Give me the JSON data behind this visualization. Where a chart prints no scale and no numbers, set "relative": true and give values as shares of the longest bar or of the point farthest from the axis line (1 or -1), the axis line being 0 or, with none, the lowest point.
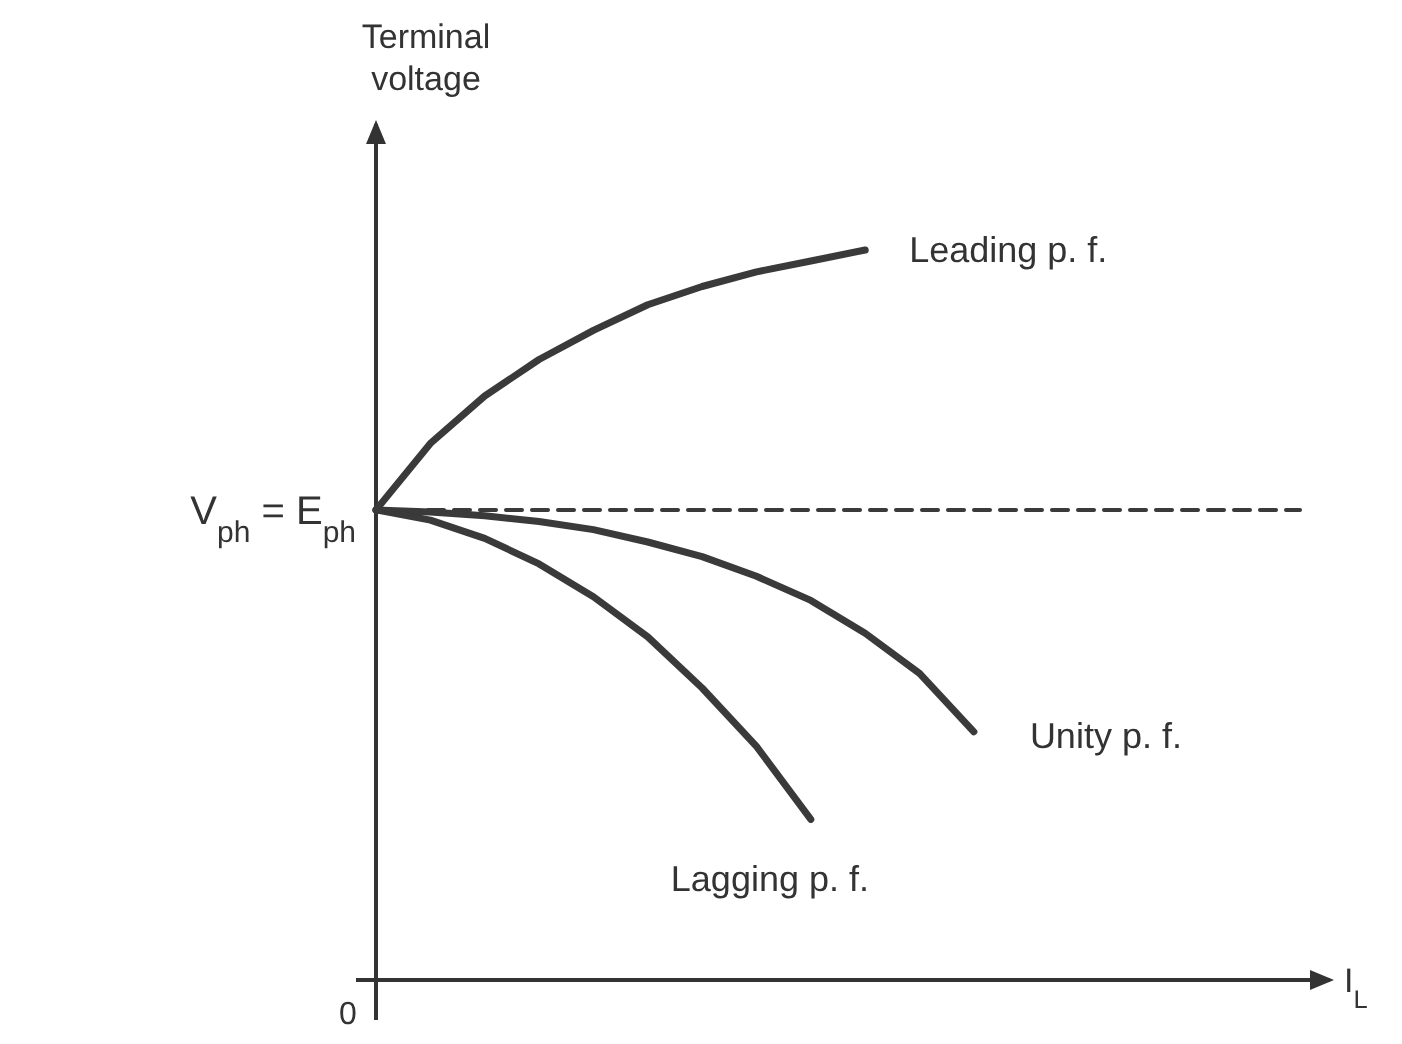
{
  "chart_data": {
    "type": "line",
    "relative": true,
    "ylabel": "Terminal voltage",
    "xlabel": "I$_{L}$",
    "legend": false,
    "marker": "none",
    "line_style": "solid",
    "grid": false,
    "categories": [
      null,
      null,
      null,
      null,
      null,
      null,
      null,
      null,
      null,
      null,
      null,
      null,
      null,
      null,
      null,
      null,
      null,
      null
    ],
    "annotations": [
      "V$_{ph}$ = E$_{ph}$",
      "0"
    ],
    "series": [
      {
        "name": "Leading p. f.",
        "color": "#3a3a3a",
        "values": [
          0.644,
          0.735,
          0.8,
          0.85,
          0.89,
          0.925,
          0.95,
          0.97,
          0.985,
          1,
          null,
          null,
          null,
          null,
          null,
          null,
          null,
          null
        ]
      },
      {
        "name": "Unity p. f.",
        "color": "#3a3a3a",
        "values": [
          0.644,
          0.641,
          0.636,
          0.628,
          0.617,
          0.6,
          0.58,
          0.553,
          0.52,
          0.475,
          0.42,
          0.34,
          null,
          null,
          null,
          null,
          null,
          null
        ]
      },
      {
        "name": "Lagging p. f.",
        "color": "#3a3a3a",
        "values": [
          0.644,
          0.63,
          0.605,
          0.57,
          0.525,
          0.47,
          0.4,
          0.32,
          0.22,
          null,
          null,
          null,
          null,
          null,
          null,
          null,
          null,
          null
        ]
      },
      {
        "color": "#3a3a3a",
        "line_style": "dashed",
        "values": [
          0.644,
          0.644,
          0.644,
          0.644,
          0.644,
          0.644,
          0.644,
          0.644,
          0.644,
          0.644,
          0.644,
          0.644,
          0.644,
          0.644,
          0.644,
          0.644,
          0.644,
          0.644
        ]
      }
    ]
  }
}
